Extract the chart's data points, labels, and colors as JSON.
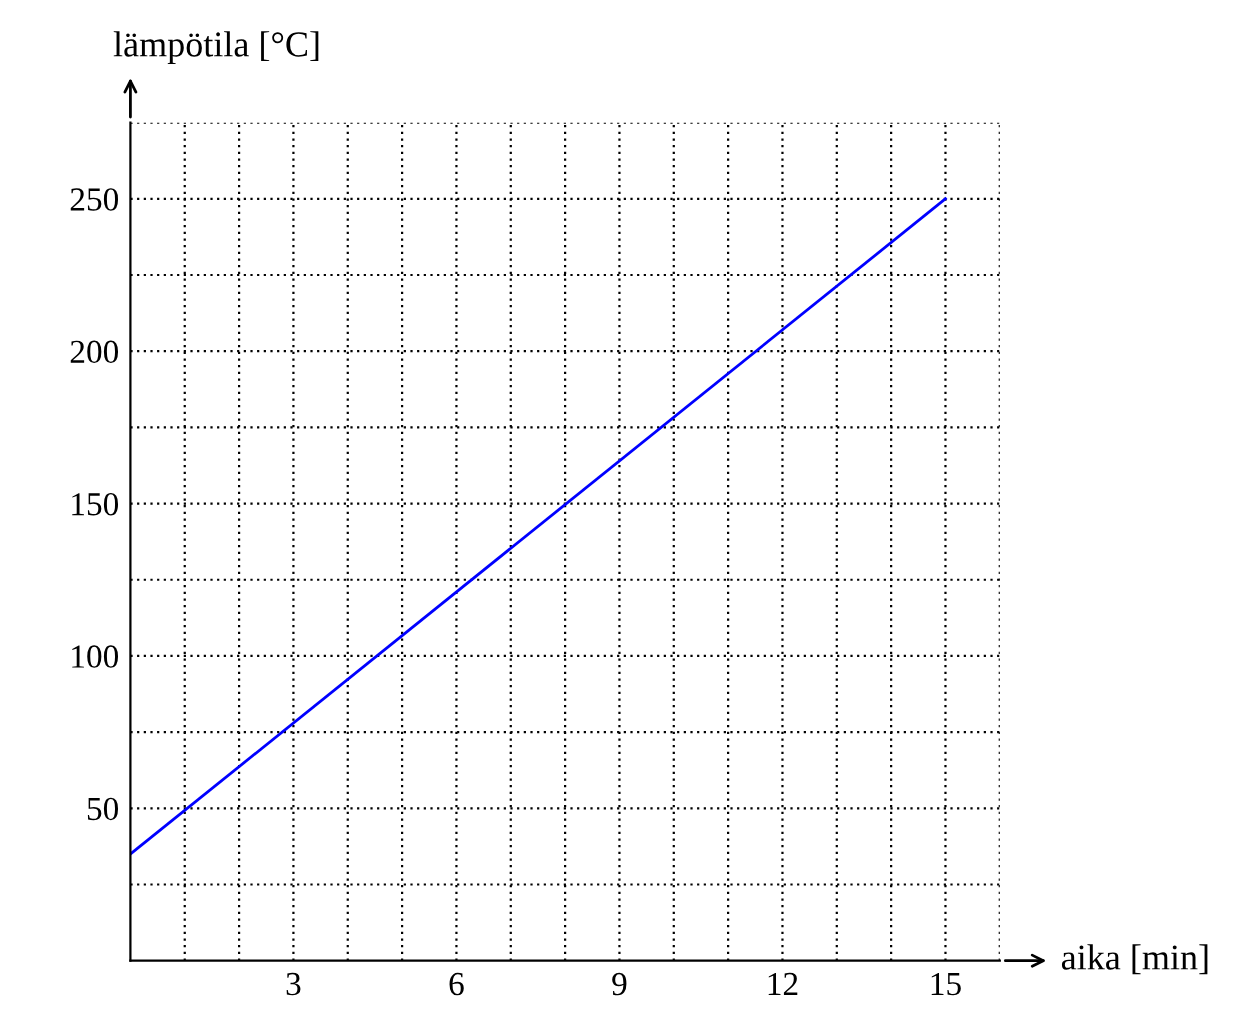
{
  "chart_data": {
    "type": "line",
    "xlabel": "aika [min]",
    "ylabel": "lämpötila [°C]",
    "x": [
      0,
      15
    ],
    "series": [
      {
        "color": "#0000ff",
        "values": [
          35,
          250
        ]
      }
    ],
    "xlim": [
      0,
      16
    ],
    "ylim": [
      0,
      275
    ],
    "xticks": [
      {
        "value": 1,
        "label": null
      },
      {
        "value": 2,
        "label": null
      },
      3,
      {
        "value": 4,
        "label": null
      },
      {
        "value": 5,
        "label": null
      },
      6,
      {
        "value": 7,
        "label": null
      },
      {
        "value": 8,
        "label": null
      },
      9,
      {
        "value": 10,
        "label": null
      },
      {
        "value": 11,
        "label": null
      },
      12,
      {
        "value": 13,
        "label": null
      },
      {
        "value": 14,
        "label": null
      },
      15,
      {
        "value": 16,
        "label": null
      }
    ],
    "yticks": [
      {
        "value": 25,
        "label": null
      },
      50,
      {
        "value": 75,
        "label": null
      },
      100,
      {
        "value": 125,
        "label": null
      },
      150,
      {
        "value": 175,
        "label": null
      },
      200,
      {
        "value": 225,
        "label": null
      },
      250,
      {
        "value": 275,
        "label": null
      }
    ],
    "grid": true,
    "legend": false,
    "marker": "none",
    "line_style": "solid"
  }
}
